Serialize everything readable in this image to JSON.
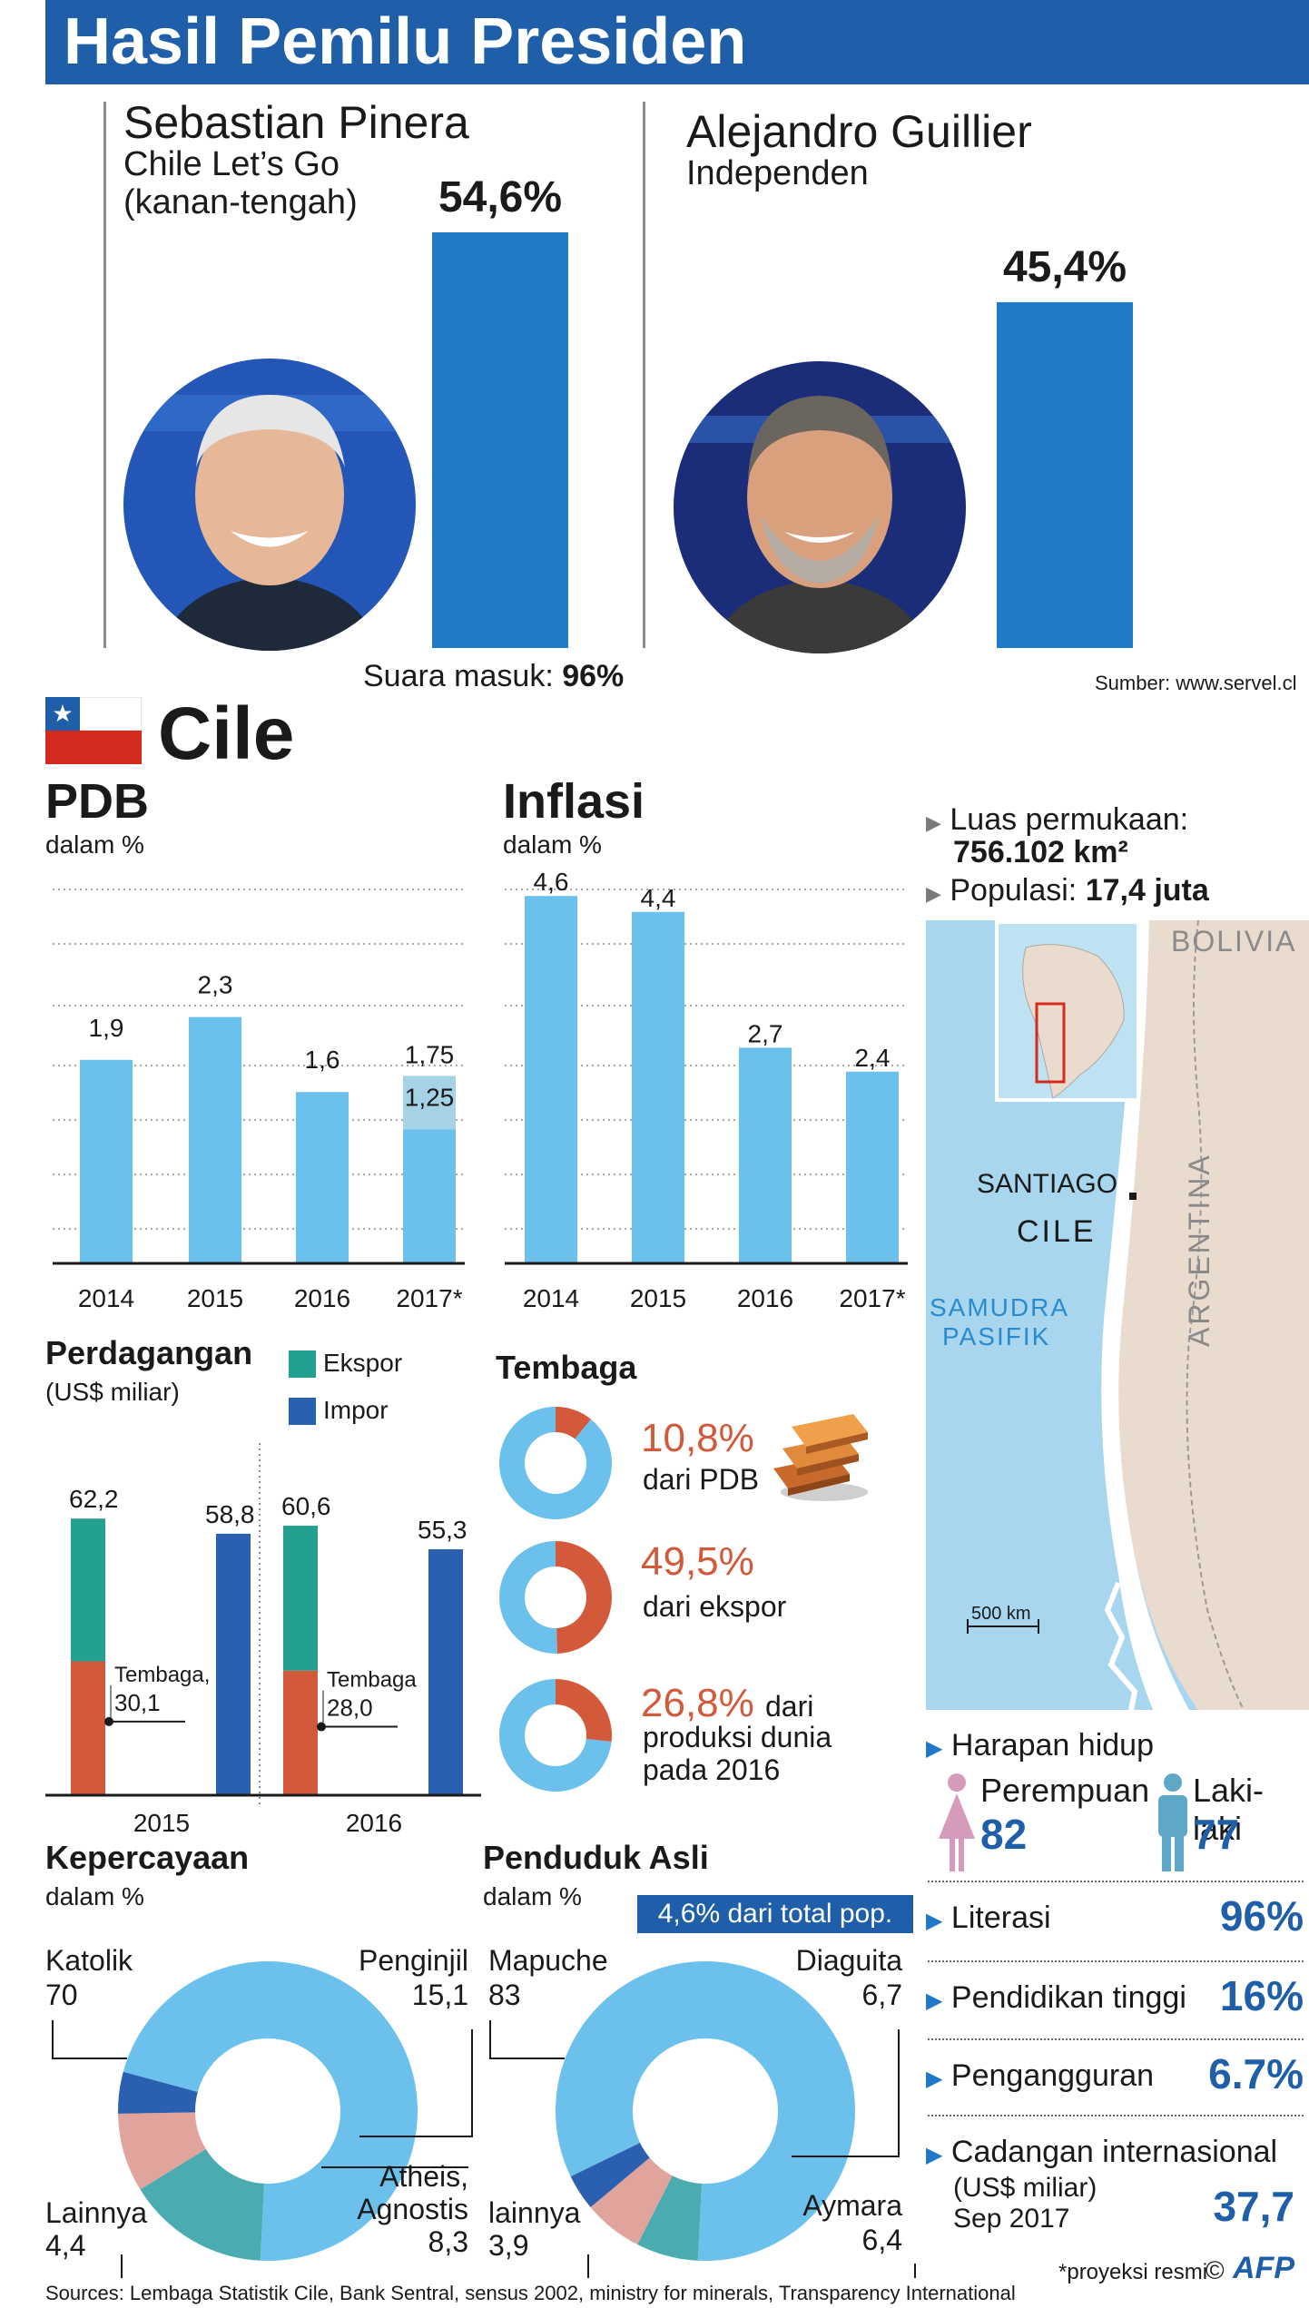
{
  "header": {
    "title": "Hasil Pemilu Presiden"
  },
  "candidates": [
    {
      "name": "Sebastian Pinera",
      "party": "Chile Let’s Go",
      "orientation": "(kanan-tengah)",
      "result": "54,6%"
    },
    {
      "name": "Alejandro Guillier",
      "party": "Independen",
      "result": "45,4%"
    }
  ],
  "turnout": {
    "label": "Suara masuk:",
    "value": "96%"
  },
  "source_top": "Sumber: www.servel.cl",
  "country": {
    "name": "Cile",
    "flag_colors": [
      "#1f5ea8",
      "#ffffff",
      "#d52b1e"
    ]
  },
  "colors": {
    "accent": "#1f5ea8",
    "light_blue": "#6cc1ec",
    "teal": "#23a08f",
    "dark_blue": "#2b5fb0",
    "copper": "#d2593a",
    "pink": "#e0a49c"
  },
  "chart_data": [
    {
      "id": "election",
      "type": "bar",
      "categories": [
        "Sebastian Pinera",
        "Alejandro Guillier"
      ],
      "values": [
        54.6,
        45.4
      ],
      "ylim": [
        0,
        54.6
      ]
    },
    {
      "id": "pdb",
      "type": "bar",
      "title": "PDB",
      "subtitle": "dalam %",
      "categories": [
        "2014",
        "2015",
        "2016",
        "2017*"
      ],
      "values": [
        1.9,
        2.3,
        1.6,
        1.25
      ],
      "projection_upper": 1.75,
      "value_labels": [
        "1,9",
        "2,3",
        "1,6",
        "1,25"
      ],
      "projection_label": "1,75",
      "ylim": [
        0,
        2.6
      ]
    },
    {
      "id": "inflasi",
      "type": "bar",
      "title": "Inflasi",
      "subtitle": "dalam %",
      "categories": [
        "2014",
        "2015",
        "2016",
        "2017*"
      ],
      "values": [
        4.6,
        4.4,
        2.7,
        2.4
      ],
      "value_labels": [
        "4,6",
        "4,4",
        "2,7",
        "2,4"
      ],
      "ylim": [
        0,
        4.6
      ]
    },
    {
      "id": "perdagangan",
      "type": "bar",
      "title": "Perdagangan",
      "subtitle": "(US$ miliar)",
      "categories": [
        "2015",
        "2016"
      ],
      "series": [
        {
          "name": "Ekspor",
          "values": [
            62.2,
            60.6
          ],
          "labels": [
            "62,2",
            "60,6"
          ]
        },
        {
          "name": "Impor",
          "values": [
            58.8,
            55.3
          ],
          "labels": [
            "58,8",
            "55,3"
          ]
        }
      ],
      "copper_component": {
        "name": "Tembaga",
        "values": [
          30.1,
          28.0
        ],
        "labels": [
          "30,1",
          "28,0"
        ]
      },
      "ylim": [
        0,
        62.2
      ]
    },
    {
      "id": "tembaga",
      "type": "pie",
      "title": "Tembaga",
      "slices": [
        {
          "pct": 10.8,
          "label": "10,8%",
          "text": "dari PDB"
        },
        {
          "pct": 49.5,
          "label": "49,5%",
          "text": "dari ekspor"
        },
        {
          "pct": 26.8,
          "label": "26,8%",
          "text_a": "dari",
          "text_b": "produksi dunia",
          "text_c": "pada 2016"
        }
      ]
    },
    {
      "id": "kepercayaan",
      "type": "pie",
      "title": "Kepercayaan",
      "subtitle": "dalam %",
      "slices": [
        {
          "name": "Katolik",
          "value": 70,
          "label": "70",
          "color": "#6cc1ec"
        },
        {
          "name": "Penginjil",
          "value": 15.1,
          "label": "15,1",
          "color": "#4aacb0"
        },
        {
          "name": "Atheis, Agnostis",
          "value": 8.3,
          "label": "8,3",
          "color": "#e0a49c"
        },
        {
          "name": "Lainnya",
          "value": 4.4,
          "label": "4,4",
          "color": "#2b5fb0"
        }
      ]
    },
    {
      "id": "penduduk",
      "type": "pie",
      "title": "Penduduk Asli",
      "subtitle": "dalam %",
      "badge": "4,6% dari total pop.",
      "slices": [
        {
          "name": "Mapuche",
          "value": 83,
          "label": "83",
          "color": "#6cc1ec"
        },
        {
          "name": "Diaguita",
          "value": 6.7,
          "label": "6,7",
          "color": "#4aacb0"
        },
        {
          "name": "Aymara",
          "value": 6.4,
          "label": "6,4",
          "color": "#e0a49c"
        },
        {
          "name": "lainnya",
          "value": 3.9,
          "label": "3,9",
          "color": "#2b5fb0"
        }
      ]
    }
  ],
  "facts": {
    "area_label": "Luas permukaan:",
    "area_value": "756.102 km²",
    "pop_label": "Populasi:",
    "pop_value": "17,4 juta"
  },
  "map": {
    "bolivia": "BOLIVIA",
    "argentina": "ARGENTINA",
    "santiago": "SANTIAGO",
    "cile": "CILE",
    "ocean_a": "SAMUDRA",
    "ocean_b": "PASIFIK",
    "scale": "500 km"
  },
  "life": {
    "title": "Harapan hidup",
    "female_label": "Perempuan",
    "female_value": "82",
    "male_label": "Laki-laki",
    "male_value": "77"
  },
  "indicators": [
    {
      "label": "Literasi",
      "value": "96%"
    },
    {
      "label": "Pendidikan tinggi",
      "value": "16%"
    },
    {
      "label": "Pengangguran",
      "value": "6.7%"
    }
  ],
  "reserves": {
    "label": "Cadangan internasional",
    "unit": "(US$ miliar)",
    "date": "Sep 2017",
    "value": "37,7"
  },
  "footnote": "*proyeksi resmi",
  "copyright": "©",
  "logo": "AFP",
  "sources": "Sources: Lembaga Statistik Cile, Bank Sentral, sensus 2002, ministry for minerals, Transparency International"
}
